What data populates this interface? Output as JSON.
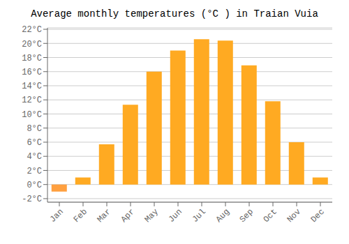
{
  "chart_data": {
    "type": "bar",
    "title": "Average monthly temperatures (°C ) in Traian Vuia",
    "categories": [
      "Jan",
      "Feb",
      "Mar",
      "Apr",
      "May",
      "Jun",
      "Jul",
      "Aug",
      "Sep",
      "Oct",
      "Nov",
      "Dec"
    ],
    "values": [
      -1.0,
      1.0,
      5.7,
      11.3,
      16.0,
      19.0,
      20.6,
      20.4,
      16.9,
      11.8,
      6.0,
      1.0
    ],
    "colors": [
      "#FFA040",
      "#FFAA22",
      "#FFAA22",
      "#FFAA22",
      "#FFAA22",
      "#FFAA22",
      "#FFAA22",
      "#FFAA22",
      "#FFAA22",
      "#FFAA22",
      "#FFAA22",
      "#FFAA22"
    ],
    "ylim": [
      -2.5,
      22.2
    ],
    "yticks": [
      {
        "value": -2,
        "label": "-2°C"
      },
      {
        "value": 0,
        "label": "0°C"
      },
      {
        "value": 2,
        "label": "2°C"
      },
      {
        "value": 4,
        "label": "4°C"
      },
      {
        "value": 6,
        "label": "6°C"
      },
      {
        "value": 8,
        "label": "8°C"
      },
      {
        "value": 10,
        "label": "10°C"
      },
      {
        "value": 12,
        "label": "12°C"
      },
      {
        "value": 14,
        "label": "14°C"
      },
      {
        "value": 16,
        "label": "16°C"
      },
      {
        "value": 18,
        "label": "18°C"
      },
      {
        "value": 20,
        "label": "20°C"
      },
      {
        "value": 22,
        "label": "22°C"
      }
    ],
    "grid": true
  }
}
